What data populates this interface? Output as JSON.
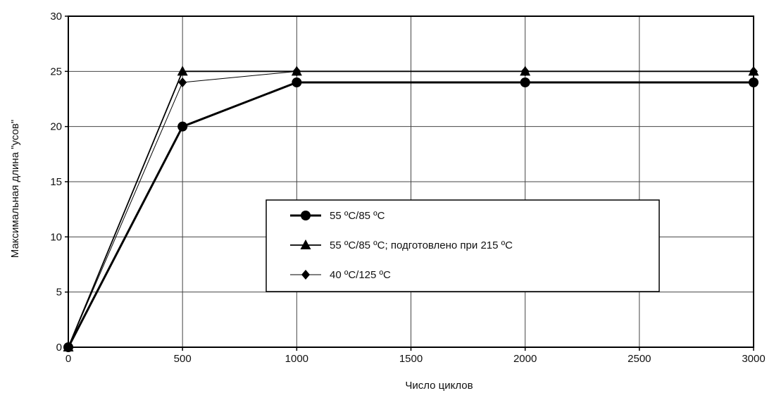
{
  "chart_data": {
    "type": "line",
    "title": "",
    "xlabel": "Число циклов",
    "ylabel": "Максимальная длина \"усов\"",
    "xlim": [
      0,
      3000
    ],
    "ylim": [
      0,
      30
    ],
    "xticks": [
      0,
      500,
      1000,
      1500,
      2000,
      2500,
      3000
    ],
    "yticks": [
      0,
      5,
      10,
      15,
      20,
      25,
      30
    ],
    "xtick_labels": [
      "0",
      "500",
      "1000",
      "1500",
      "2000",
      "2500",
      "3000"
    ],
    "ytick_labels": [
      "0",
      "5",
      "10",
      "15",
      "20",
      "25",
      "30"
    ],
    "grid": true,
    "legend_position": "center-right inside plot",
    "series": [
      {
        "name": "55 ºС/85 ºС",
        "marker": "circle",
        "line_weight": "thick",
        "x": [
          0,
          500,
          1000,
          2000,
          3000
        ],
        "y": [
          0,
          20,
          24,
          24,
          24
        ]
      },
      {
        "name": "55 ºС/85 ºС; подготовлено при 215 ºС",
        "marker": "triangle",
        "line_weight": "medium",
        "x": [
          0,
          500,
          1000,
          2000,
          3000
        ],
        "y": [
          0,
          25,
          25,
          25,
          25
        ]
      },
      {
        "name": "40 ºС/125 ºС",
        "marker": "diamond",
        "line_weight": "thin",
        "x": [
          0,
          500,
          1000,
          2000,
          3000
        ],
        "y": [
          0,
          24,
          25,
          25,
          25
        ]
      }
    ]
  }
}
